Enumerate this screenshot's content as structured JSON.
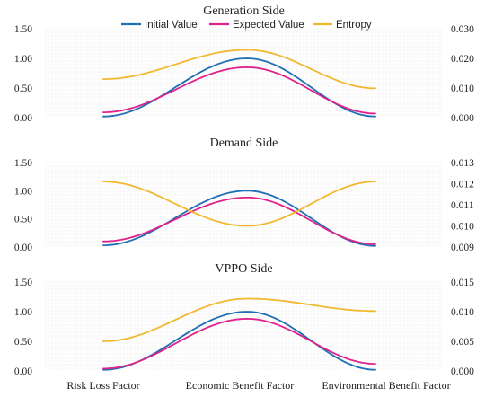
{
  "figure": {
    "categories": [
      "Risk Loss Factor",
      "Economic Benefit Factor",
      "Environmental Benefit Factor"
    ]
  },
  "legend": [
    {
      "name": "Initial Value",
      "color": "#1f6fb5"
    },
    {
      "name": "Expected Value",
      "color": "#e0218a"
    },
    {
      "name": "Entropy",
      "color": "#f2b830"
    }
  ],
  "chart_data": [
    {
      "type": "line",
      "title": "Generation Side",
      "categories": [
        "Risk Loss Factor",
        "Economic Benefit Factor",
        "Environmental Benefit Factor"
      ],
      "y_left": {
        "ticks": [
          "0.00",
          "0.50",
          "1.00",
          "1.50"
        ],
        "lim": [
          0,
          1.5
        ]
      },
      "y_right": {
        "ticks": [
          "0.000",
          "0.010",
          "0.020",
          "0.030"
        ],
        "lim": [
          0,
          0.03
        ]
      },
      "series": [
        {
          "name": "Initial Value",
          "axis": "left",
          "color": "#1f6fb5",
          "values": [
            0.02,
            1.0,
            0.02
          ]
        },
        {
          "name": "Expected Value",
          "axis": "left",
          "color": "#e0218a",
          "values": [
            0.09,
            0.85,
            0.07
          ]
        },
        {
          "name": "Entropy",
          "axis": "right",
          "color": "#f2b830",
          "values": [
            0.013,
            0.0229,
            0.0099
          ]
        }
      ],
      "grid": true,
      "legend": "top-center"
    },
    {
      "type": "line",
      "title": "Demand Side",
      "categories": [
        "Risk Loss Factor",
        "Economic Benefit Factor",
        "Environmental Benefit Factor"
      ],
      "y_left": {
        "ticks": [
          "0.00",
          "0.50",
          "1.00",
          "1.50"
        ],
        "lim": [
          0,
          1.5
        ]
      },
      "y_right": {
        "ticks": [
          "0.009",
          "0.010",
          "0.011",
          "0.012",
          "0.013"
        ],
        "lim": [
          0.009,
          0.013
        ]
      },
      "series": [
        {
          "name": "Initial Value",
          "axis": "left",
          "color": "#1f6fb5",
          "values": [
            0.03,
            1.0,
            0.02
          ]
        },
        {
          "name": "Expected Value",
          "axis": "left",
          "color": "#e0218a",
          "values": [
            0.1,
            0.88,
            0.05
          ]
        },
        {
          "name": "Entropy",
          "axis": "right",
          "color": "#f2b830",
          "values": [
            0.0121,
            0.01,
            0.0121
          ]
        }
      ],
      "grid": true
    },
    {
      "type": "line",
      "title": "VPPO Side",
      "categories": [
        "Risk Loss Factor",
        "Economic Benefit Factor",
        "Environmental Benefit Factor"
      ],
      "y_left": {
        "ticks": [
          "0.00",
          "0.50",
          "1.00",
          "1.50"
        ],
        "lim": [
          0,
          1.5
        ]
      },
      "y_right": {
        "ticks": [
          "0.000",
          "0.005",
          "0.010",
          "0.015"
        ],
        "lim": [
          0,
          0.015
        ]
      },
      "series": [
        {
          "name": "Initial Value",
          "axis": "left",
          "color": "#1f6fb5",
          "values": [
            0.02,
            1.0,
            0.02
          ]
        },
        {
          "name": "Expected Value",
          "axis": "left",
          "color": "#e0218a",
          "values": [
            0.04,
            0.88,
            0.12
          ]
        },
        {
          "name": "Entropy",
          "axis": "right",
          "color": "#f2b830",
          "values": [
            0.005,
            0.0122,
            0.0101
          ]
        }
      ],
      "grid": true
    }
  ]
}
